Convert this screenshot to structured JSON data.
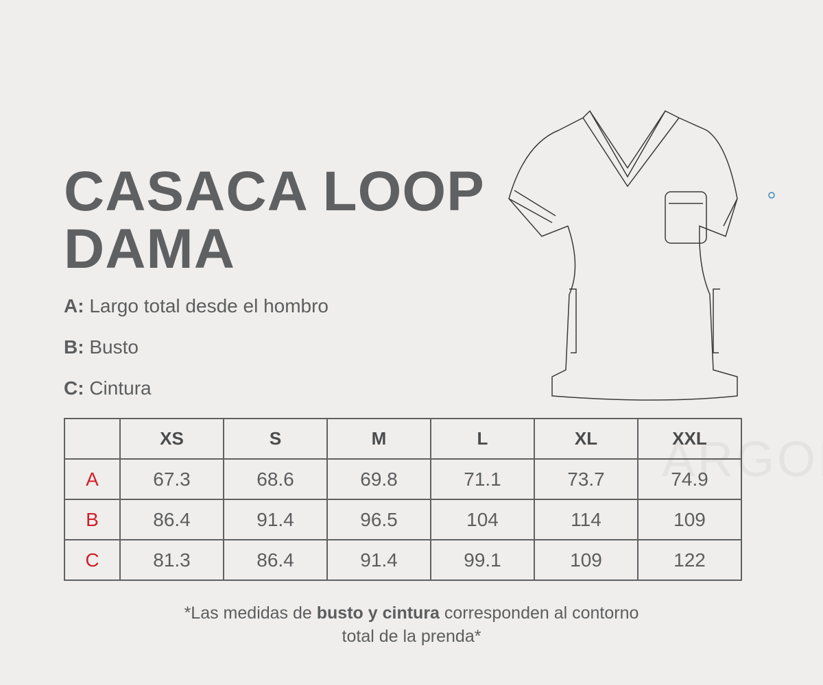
{
  "brand": {
    "watermark": "ARGON"
  },
  "header": {
    "title": "CASACA LOOP DAMA"
  },
  "legend": [
    {
      "key": "A:",
      "text": "Largo total desde el hombro"
    },
    {
      "key": "B:",
      "text": "Busto"
    },
    {
      "key": "C:",
      "text": "Cintura"
    }
  ],
  "table": {
    "sizes": [
      "XS",
      "S",
      "M",
      "L",
      "XL",
      "XXL"
    ],
    "rows": [
      {
        "label": "A",
        "values": [
          67.3,
          68.6,
          69.8,
          71.1,
          73.7,
          74.9
        ]
      },
      {
        "label": "B",
        "values": [
          86.4,
          91.4,
          96.5,
          104,
          114,
          109
        ]
      },
      {
        "label": "C",
        "values": [
          81.3,
          86.4,
          91.4,
          99.1,
          109,
          122
        ]
      }
    ]
  },
  "footnote": {
    "before": "*Las medidas de ",
    "bold": "busto y cintura",
    "after": " corresponden al contorno",
    "line2": "total de la prenda*"
  }
}
